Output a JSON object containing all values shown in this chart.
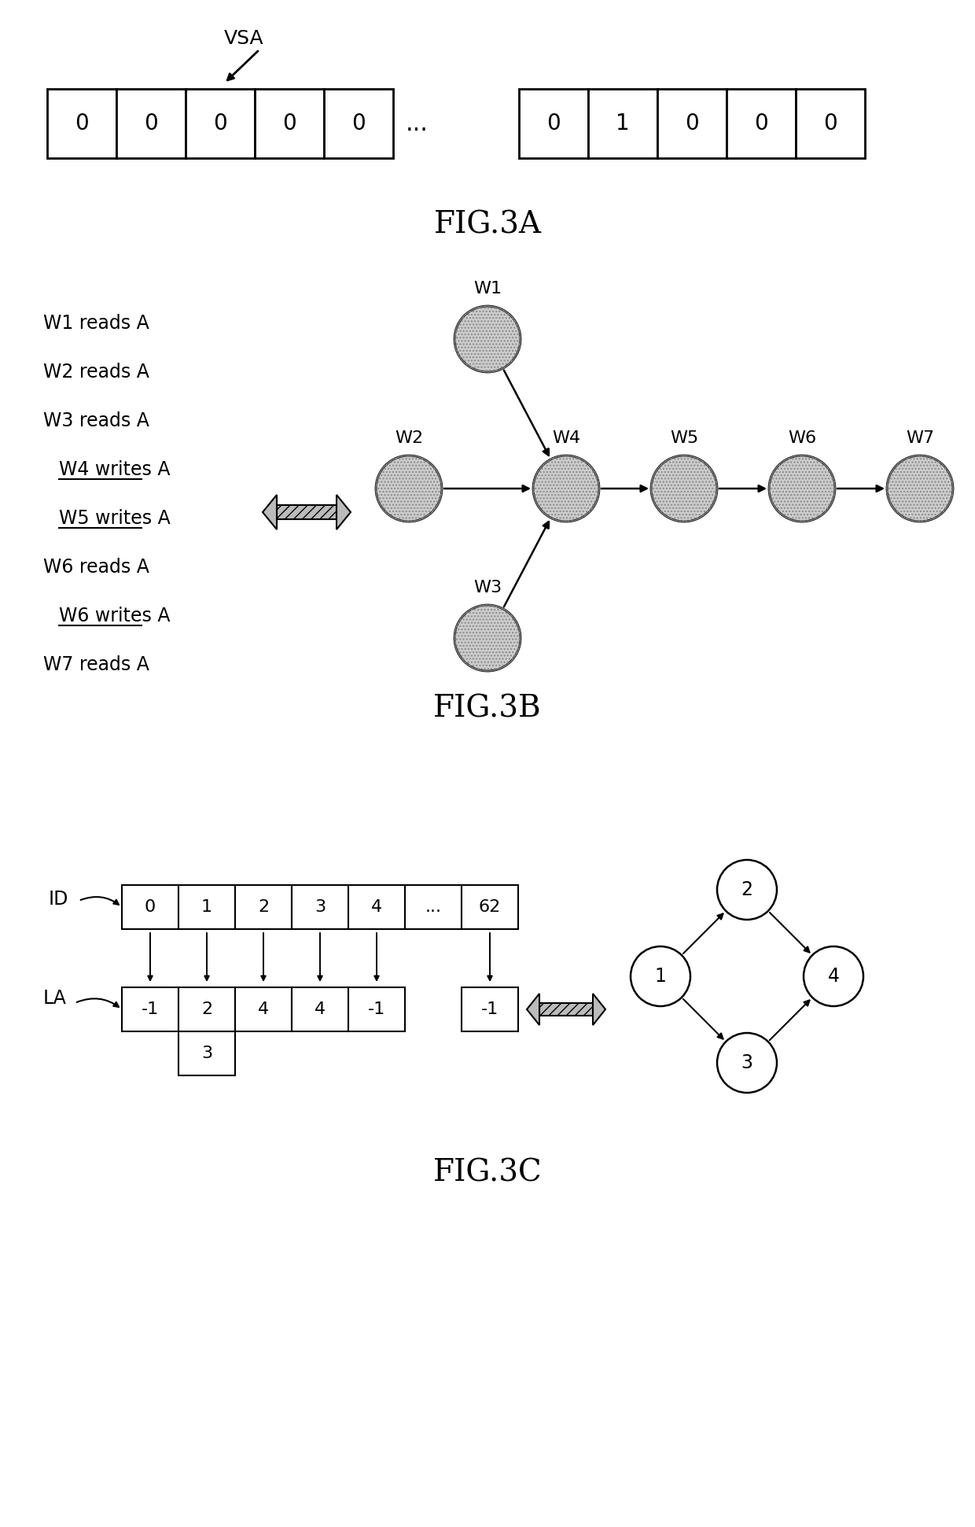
{
  "fig3a": {
    "title": "FIG.3A",
    "vsa_label": "VSA",
    "array1_values": [
      "0",
      "0",
      "0",
      "0",
      "0"
    ],
    "array2_values": [
      "0",
      "1",
      "0",
      "0",
      "0"
    ]
  },
  "fig3b": {
    "title": "FIG.3B",
    "text_lines": [
      {
        "text": "W1 reads A",
        "underline": false,
        "indent": false
      },
      {
        "text": "W2 reads A",
        "underline": false,
        "indent": false
      },
      {
        "text": "W3 reads A",
        "underline": false,
        "indent": false
      },
      {
        "text": "W4 writes A",
        "underline": true,
        "indent": true
      },
      {
        "text": "W5 writes A",
        "underline": true,
        "indent": true
      },
      {
        "text": "W6 reads A",
        "underline": false,
        "indent": false
      },
      {
        "text": "W6 writes A",
        "underline": true,
        "indent": true
      },
      {
        "text": "W7 reads A",
        "underline": false,
        "indent": false
      }
    ],
    "edges": [
      [
        "W1",
        "W4"
      ],
      [
        "W2",
        "W4"
      ],
      [
        "W3",
        "W4"
      ],
      [
        "W4",
        "W5"
      ],
      [
        "W5",
        "W6"
      ],
      [
        "W6",
        "W7"
      ]
    ]
  },
  "fig3c": {
    "title": "FIG.3C",
    "id_values": [
      "0",
      "1",
      "2",
      "3",
      "4",
      "...",
      "62"
    ],
    "la_values": [
      "-1",
      "2",
      "4",
      "4",
      "-1",
      "-1"
    ],
    "la_second": [
      null,
      "3",
      null,
      null,
      null,
      null
    ],
    "la_id_indices": [
      0,
      1,
      2,
      3,
      4,
      6
    ],
    "graph_edges": [
      [
        "1",
        "2"
      ],
      [
        "1",
        "3"
      ],
      [
        "2",
        "4"
      ],
      [
        "3",
        "4"
      ]
    ]
  },
  "bg": "#ffffff",
  "black": "#000000",
  "node_hatch_color": "#aaaaaa",
  "node_fill_3b": "#cccccc",
  "node_fill_3c": "#ffffff"
}
